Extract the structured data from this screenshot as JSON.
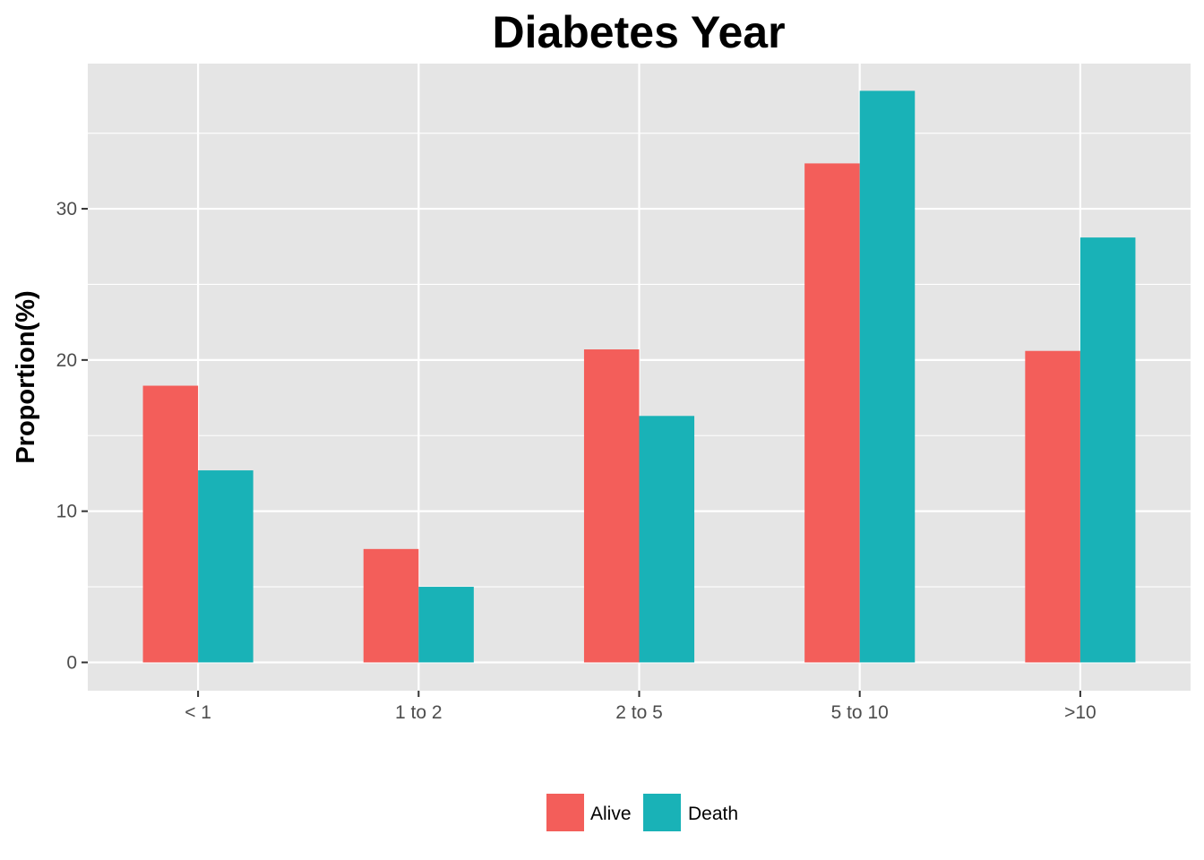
{
  "chart_data": {
    "type": "bar",
    "title": "Diabetes Year",
    "xlabel": "",
    "ylabel": "Proportion(%)",
    "categories": [
      "< 1",
      "1 to 2",
      "2 to 5",
      "5 to 10",
      ">10"
    ],
    "series": [
      {
        "name": "Alive",
        "color": "#F8766D",
        "values": [
          18.3,
          7.5,
          20.7,
          33.0,
          20.6
        ]
      },
      {
        "name": "Death",
        "color": "#00BFC4",
        "values": [
          12.7,
          5.0,
          16.3,
          37.8,
          28.1
        ]
      }
    ],
    "ylim": [
      -1.87,
      39.6
    ],
    "yticks": [
      0,
      10,
      20,
      30
    ],
    "ytick_labels": [
      "0",
      "10",
      "20",
      "30"
    ],
    "grid": true,
    "legend_position": "bottom",
    "colors": {
      "panel_background": "#E5E5E5",
      "grid_line": "#FFFFFF",
      "tick_text": "#4D4D4D",
      "bar_alive": "#F35E5A",
      "bar_death": "#19B2B7"
    }
  }
}
